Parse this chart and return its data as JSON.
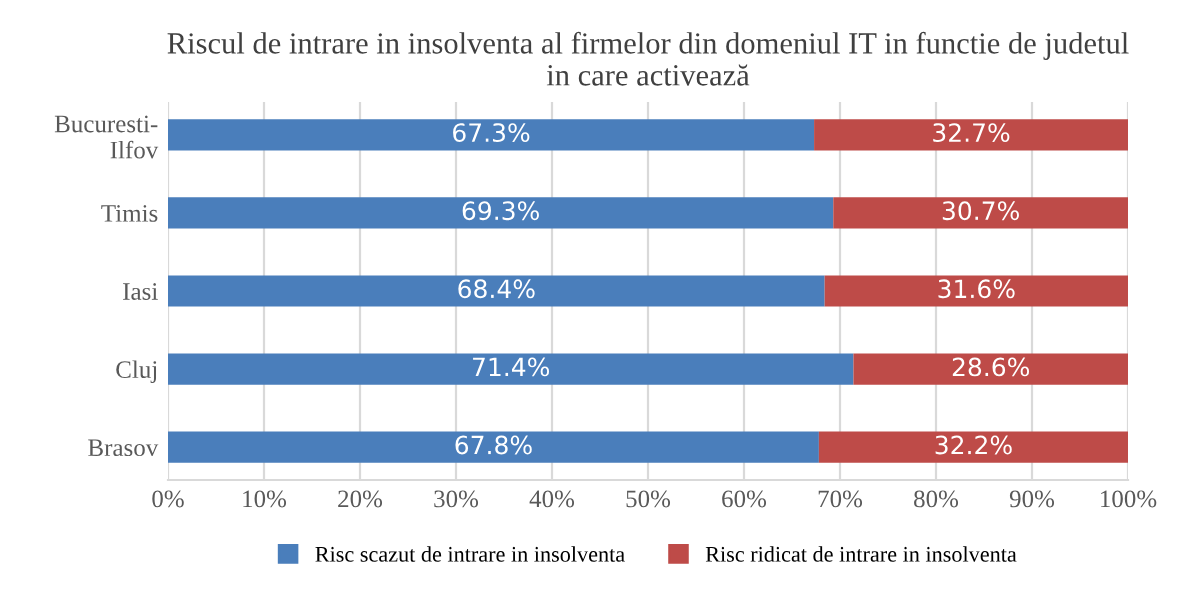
{
  "chart_data": {
    "type": "bar",
    "orientation": "horizontal",
    "stacked": true,
    "title": "Riscul de intrare in insolventa al firmelor din domeniul IT in functie de judetul\nin care activează",
    "categories": [
      "Bucuresti-\nIlfov",
      "Timis",
      "Iasi",
      "Cluj",
      "Brasov"
    ],
    "series": [
      {
        "name": "Risc scazut de intrare in insolventa",
        "color": "#4a7ebb",
        "values": [
          67.3,
          69.3,
          68.4,
          71.4,
          67.8
        ],
        "value_labels": [
          "67.3%",
          "69.3%",
          "68.4%",
          "71.4%",
          "67.8%"
        ]
      },
      {
        "name": "Risc ridicat de intrare in insolventa",
        "color": "#be4b48",
        "values": [
          32.7,
          30.7,
          31.6,
          28.6,
          32.2
        ],
        "value_labels": [
          "32.7%",
          "30.7%",
          "31.6%",
          "28.6%",
          "32.2%"
        ]
      }
    ],
    "xlim": [
      0,
      100
    ],
    "xticks": [
      {
        "value": 0,
        "label": "0%"
      },
      {
        "value": 10,
        "label": "10%"
      },
      {
        "value": 20,
        "label": "20%"
      },
      {
        "value": 30,
        "label": "30%"
      },
      {
        "value": 40,
        "label": "40%"
      },
      {
        "value": 50,
        "label": "50%"
      },
      {
        "value": 60,
        "label": "60%"
      },
      {
        "value": 70,
        "label": "70%"
      },
      {
        "value": 80,
        "label": "80%"
      },
      {
        "value": 90,
        "label": "90%"
      },
      {
        "value": 100,
        "label": "100%"
      }
    ],
    "grid": "x",
    "legend": "bottom"
  }
}
